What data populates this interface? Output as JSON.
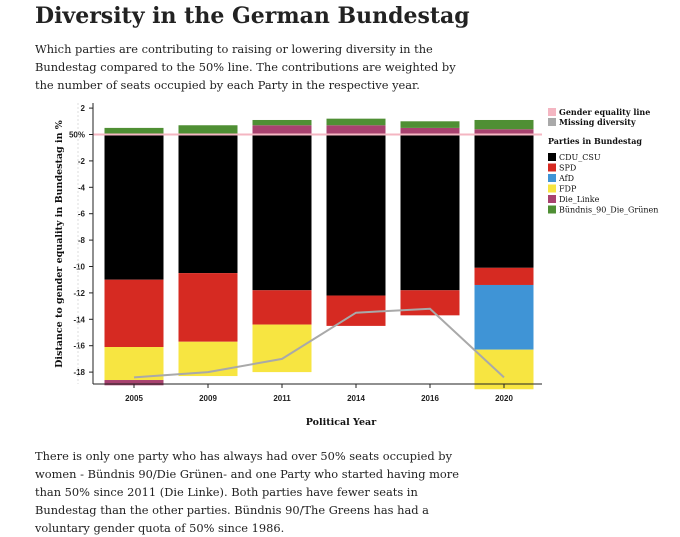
{
  "header": {
    "title": "Diversity in the German Bundestag",
    "intro": "Which parties are contributing to raising or lowering diversity in the Bundestag compared to the 50% line. The contributions are weighted by the number of seats occupied by each Party in the respective year."
  },
  "footer": {
    "text": "There is only one party who has always had over 50% seats occupied by women - Bündnis 90/Die Grünen- and one Party who started having more than 50% since 2011 (Die Linke). Both parties have fewer seats in Bundestag than the other parties. Bündnis 90/The Greens has had a voluntary gender quota of 50% since 1986."
  },
  "chart_data": {
    "type": "bar",
    "stacked": true,
    "categories": [
      "2005",
      "2009",
      "2011",
      "2014",
      "2016",
      "2020"
    ],
    "xlabel": "Political Year",
    "ylabel": "Distance to gender equality in Bundestag in %",
    "ylim": [
      -19,
      2
    ],
    "yticks": [
      2,
      0,
      -2,
      -4,
      -6,
      -8,
      -10,
      -12,
      -14,
      -16,
      -18
    ],
    "ytick_labels": [
      "2",
      "50%",
      "-2",
      "-4",
      "-6",
      "-8",
      "-10",
      "-12",
      "-14",
      "-16",
      "-18"
    ],
    "series": [
      {
        "name": "CDU_CSU",
        "color": "#000000",
        "values": [
          -11.0,
          -10.5,
          -11.8,
          -12.2,
          -11.8,
          -10.1
        ]
      },
      {
        "name": "SPD",
        "color": "#d62a22",
        "values": [
          -5.1,
          -5.2,
          -2.6,
          -2.3,
          -1.9,
          -1.3
        ]
      },
      {
        "name": "AfD",
        "color": "#3f94d6",
        "values": [
          0,
          0,
          0,
          0,
          0,
          -4.9
        ]
      },
      {
        "name": "FDP",
        "color": "#f7e541",
        "values": [
          -2.5,
          -2.6,
          -3.6,
          0,
          0,
          -3.0
        ]
      },
      {
        "name": "Die_Linke",
        "color": "#a8426f",
        "values": [
          -0.4,
          0,
          0.7,
          0.7,
          0.5,
          0.4
        ]
      },
      {
        "name": "Bündnis_90_Die_Grünen",
        "color": "#4f8f34",
        "values": [
          0.5,
          0.7,
          0.4,
          0.5,
          0.5,
          0.7
        ]
      }
    ],
    "missing_diversity": [
      -18.4,
      -18.0,
      -17.0,
      -13.5,
      -13.2,
      -18.4
    ],
    "equality_line": 0,
    "legend": {
      "placement": "right",
      "line_items": [
        {
          "name": "Gender equality line",
          "color": "#f4b6c2"
        },
        {
          "name": "Missing diversity",
          "color": "#a9a9a9"
        }
      ],
      "parties_title": "Parties in Bundestag"
    },
    "grid": false
  }
}
